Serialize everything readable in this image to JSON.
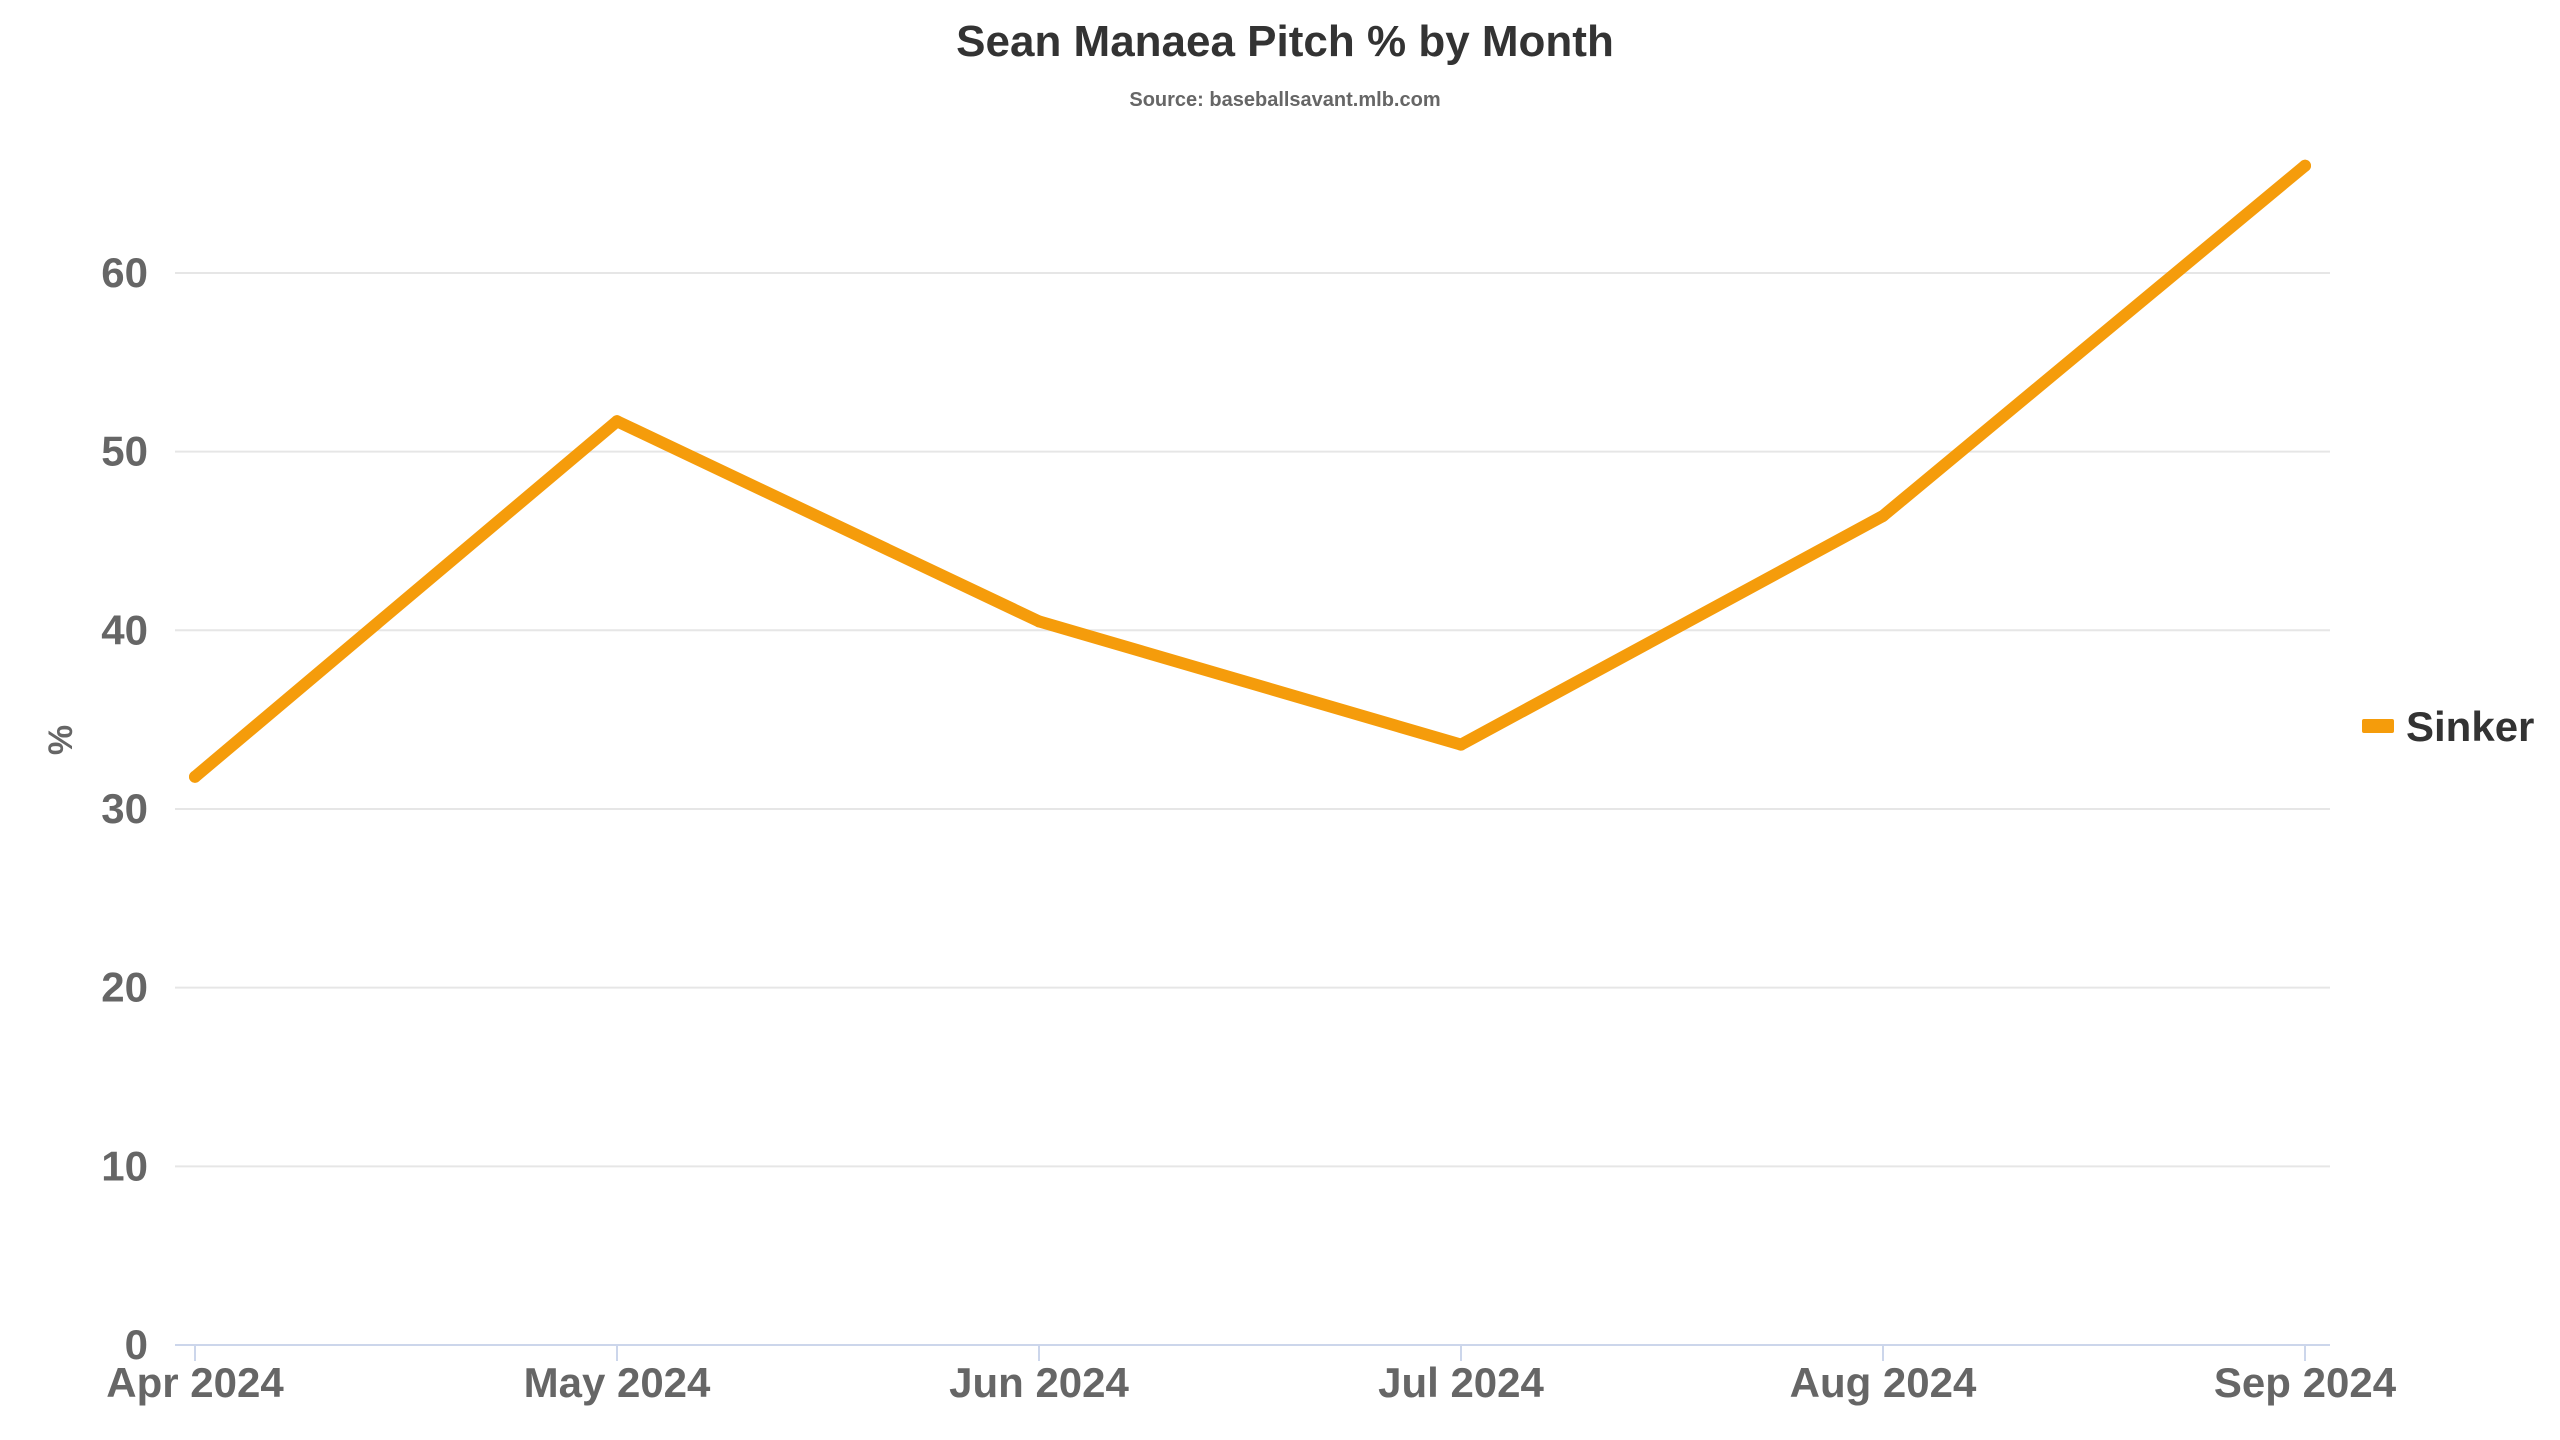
{
  "chart_data": {
    "type": "line",
    "title": "Sean Manaea Pitch % by Month",
    "subtitle": "Source: baseballsavant.mlb.com",
    "xlabel": "",
    "ylabel": "%",
    "categories": [
      "Apr 2024",
      "May 2024",
      "Jun 2024",
      "Jul 2024",
      "Aug 2024",
      "Sep 2024"
    ],
    "yticks": [
      0,
      10,
      20,
      30,
      40,
      50,
      60
    ],
    "ylim": [
      0,
      68
    ],
    "grid": true,
    "legend": "right",
    "series": [
      {
        "name": "Sinker",
        "color": "#f59c0b",
        "values": [
          31.8,
          51.7,
          40.5,
          33.6,
          46.4,
          66.0
        ]
      }
    ]
  }
}
